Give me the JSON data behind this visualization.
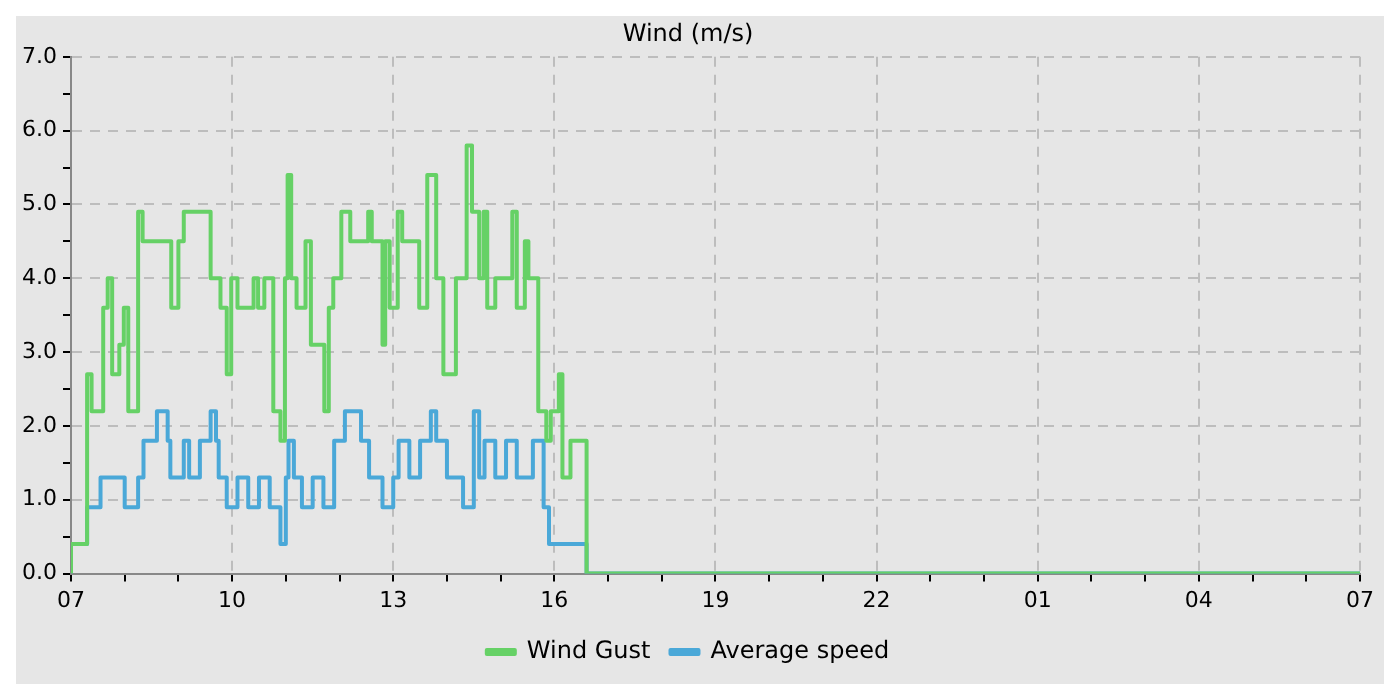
{
  "chart_data": {
    "type": "step",
    "title": "Wind (m/s)",
    "xlim": [
      "--01-01T07:00",
      "--01-02T07:00"
    ],
    "xticks": [
      {
        "value": "--01-01T07:00",
        "label": "07"
      },
      {
        "value": "--01-01T08:00",
        "label": null
      },
      {
        "value": "--01-01T09:00",
        "label": null
      },
      {
        "value": "--01-01T10:00",
        "label": "10"
      },
      {
        "value": "--01-01T11:00",
        "label": null
      },
      {
        "value": "--01-01T12:00",
        "label": null
      },
      {
        "value": "--01-01T13:00",
        "label": "13"
      },
      {
        "value": "--01-01T14:00",
        "label": null
      },
      {
        "value": "--01-01T15:00",
        "label": null
      },
      {
        "value": "--01-01T16:00",
        "label": "16"
      },
      {
        "value": "--01-01T17:00",
        "label": null
      },
      {
        "value": "--01-01T18:00",
        "label": null
      },
      {
        "value": "--01-01T19:00",
        "label": "19"
      },
      {
        "value": "--01-01T20:00",
        "label": null
      },
      {
        "value": "--01-01T21:00",
        "label": null
      },
      {
        "value": "--01-01T22:00",
        "label": "22"
      },
      {
        "value": "--01-01T23:00",
        "label": null
      },
      {
        "value": "--01-02T00:00",
        "label": null
      },
      {
        "value": "--01-02T01:00",
        "label": "01"
      },
      {
        "value": "--01-02T02:00",
        "label": null
      },
      {
        "value": "--01-02T03:00",
        "label": null
      },
      {
        "value": "--01-02T04:00",
        "label": "04"
      },
      {
        "value": "--01-02T05:00",
        "label": null
      },
      {
        "value": "--01-02T06:00",
        "label": null
      },
      {
        "value": "--01-02T07:00",
        "label": "07"
      }
    ],
    "ylim": [
      0,
      7
    ],
    "yticks": [
      {
        "value": 0,
        "label": "0.0"
      },
      {
        "value": 0.5,
        "label": null
      },
      {
        "value": 1,
        "label": "1.0"
      },
      {
        "value": 1.5,
        "label": null
      },
      {
        "value": 2,
        "label": "2.0"
      },
      {
        "value": 2.5,
        "label": null
      },
      {
        "value": 3,
        "label": "3.0"
      },
      {
        "value": 3.5,
        "label": null
      },
      {
        "value": 4,
        "label": "4.0"
      },
      {
        "value": 4.5,
        "label": null
      },
      {
        "value": 5,
        "label": "5.0"
      },
      {
        "value": 5.5,
        "label": null
      },
      {
        "value": 6,
        "label": "6.0"
      },
      {
        "value": 6.5,
        "label": null
      },
      {
        "value": 7,
        "label": "7.0"
      }
    ],
    "grid": true,
    "legend": "bottom",
    "series": [
      {
        "name": "Wind Gust",
        "color": "#66d166",
        "x": [
          "--01-01T07:00",
          "--01-01T07:18",
          "--01-01T07:23",
          "--01-01T07:36",
          "--01-01T07:41",
          "--01-01T07:46",
          "--01-01T07:54",
          "--01-01T07:59",
          "--01-01T08:04",
          "--01-01T08:15",
          "--01-01T08:20",
          "--01-01T08:52",
          "--01-01T09:00",
          "--01-01T09:04",
          "--01-01T09:06",
          "--01-01T09:36",
          "--01-01T09:47",
          "--01-01T09:54",
          "--01-01T09:59",
          "--01-01T10:06",
          "--01-01T10:24",
          "--01-01T10:29",
          "--01-01T10:36",
          "--01-01T10:41",
          "--01-01T10:46",
          "--01-01T10:54",
          "--01-01T10:59",
          "--01-01T11:02",
          "--01-01T11:06",
          "--01-01T11:12",
          "--01-01T11:22",
          "--01-01T11:28",
          "--01-01T11:43",
          "--01-01T11:48",
          "--01-01T11:53",
          "--01-01T12:02",
          "--01-01T12:12",
          "--01-01T12:32",
          "--01-01T12:36",
          "--01-01T12:48",
          "--01-01T12:51",
          "--01-01T12:56",
          "--01-01T13:05",
          "--01-01T13:10",
          "--01-01T13:29",
          "--01-01T13:38",
          "--01-01T13:48",
          "--01-01T13:56",
          "--01-01T14:10",
          "--01-01T14:15",
          "--01-01T14:22",
          "--01-01T14:28",
          "--01-01T14:36",
          "--01-01T14:41",
          "--01-01T14:45",
          "--01-01T14:54",
          "--01-01T14:59",
          "--01-01T15:13",
          "--01-01T15:18",
          "--01-01T15:27",
          "--01-01T15:31",
          "--01-01T15:42",
          "--01-01T15:51",
          "--01-01T15:56",
          "--01-01T16:05",
          "--01-01T16:09",
          "--01-01T16:18",
          "--01-01T16:32",
          "--01-01T16:36",
          "--01-01T16:45",
          "--01-02T07:00"
        ],
        "values": [
          0,
          0.4,
          2.7,
          2.2,
          3.6,
          4.0,
          2.7,
          3.1,
          3.6,
          2.2,
          4.9,
          4.5,
          3.6,
          4.5,
          4.5,
          4.9,
          4.0,
          3.6,
          2.7,
          4.0,
          3.6,
          4.0,
          3.6,
          4.0,
          4.0,
          2.2,
          1.8,
          4.0,
          5.4,
          4.0,
          3.6,
          4.5,
          3.1,
          2.2,
          3.6,
          4.0,
          4.9,
          4.5,
          4.9,
          4.5,
          3.1,
          4.5,
          3.6,
          4.9,
          4.5,
          3.6,
          5.4,
          4.0,
          2.7,
          4.0,
          4.0,
          5.8,
          4.9,
          4.0,
          4.9,
          3.6,
          4.0,
          4.0,
          4.9,
          3.6,
          4.5,
          4.0,
          2.2,
          1.8,
          2.2,
          2.7,
          1.3,
          1.8,
          1.8,
          0,
          0
        ]
      },
      {
        "name": "Average speed",
        "color": "#4aa8d8",
        "x": [
          "--01-01T07:00",
          "--01-01T07:18",
          "--01-01T07:33",
          "--01-01T08:00",
          "--01-01T08:15",
          "--01-01T08:21",
          "--01-01T08:36",
          "--01-01T08:48",
          "--01-01T08:51",
          "--01-01T09:06",
          "--01-01T09:12",
          "--01-01T09:24",
          "--01-01T09:36",
          "--01-01T09:42",
          "--01-01T09:45",
          "--01-01T09:54",
          "--01-01T10:06",
          "--01-01T10:18",
          "--01-01T10:30",
          "--01-01T10:42",
          "--01-01T10:54",
          "--01-01T11:00",
          "--01-01T11:03",
          "--01-01T11:09",
          "--01-01T11:18",
          "--01-01T11:30",
          "--01-01T11:42",
          "--01-01T11:54",
          "--01-01T12:06",
          "--01-01T12:24",
          "--01-01T12:33",
          "--01-01T12:48",
          "--01-01T13:00",
          "--01-01T13:06",
          "--01-01T13:18",
          "--01-01T13:30",
          "--01-01T13:42",
          "--01-01T13:48",
          "--01-01T14:00",
          "--01-01T14:18",
          "--01-01T14:30",
          "--01-01T14:36",
          "--01-01T14:42",
          "--01-01T14:54",
          "--01-01T15:06",
          "--01-01T15:18",
          "--01-01T15:36",
          "--01-01T15:48",
          "--01-01T15:54",
          "--01-01T16:36",
          "--01-01T16:45",
          "--01-02T07:00"
        ],
        "values": [
          0,
          0.4,
          0.9,
          1.3,
          0.9,
          1.3,
          1.8,
          2.2,
          1.8,
          1.3,
          1.8,
          1.3,
          1.8,
          2.2,
          1.8,
          1.3,
          0.9,
          1.3,
          0.9,
          1.3,
          0.9,
          0.4,
          1.3,
          1.8,
          1.3,
          0.9,
          1.3,
          0.9,
          1.8,
          2.2,
          1.8,
          1.3,
          0.9,
          1.3,
          1.8,
          1.3,
          1.8,
          2.2,
          1.8,
          1.3,
          0.9,
          2.2,
          1.3,
          1.8,
          1.3,
          1.8,
          1.3,
          1.8,
          0.9,
          0.4,
          0,
          0
        ]
      }
    ]
  }
}
